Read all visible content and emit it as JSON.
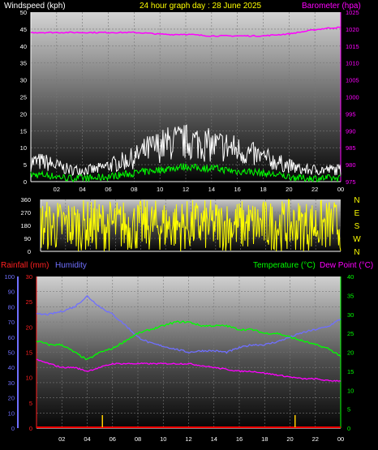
{
  "header": {
    "wind_label": "Windspeed (kph)",
    "title": "24 hour graph day : 28 June 2025",
    "baro_label": "Barometer (hpa)"
  },
  "colors": {
    "wind_gust": "#ffffff",
    "wind_avg": "#00ff00",
    "barometer": "#ff00ff",
    "direction": "#ffff00",
    "rainfall": "#ff0000",
    "humidity": "#6f6fff",
    "temperature": "#00ff00",
    "dewpoint": "#ff00ff",
    "grid": "#5a5a5a"
  },
  "x_ticks": [
    "02",
    "04",
    "06",
    "08",
    "10",
    "12",
    "14",
    "16",
    "18",
    "20",
    "22",
    "00"
  ],
  "chart_data": [
    {
      "type": "line",
      "title": "24 hour graph day : 28 June 2025",
      "ylabel": "Windspeed (kph)",
      "y2label": "Barometer (hpa)",
      "ylim": [
        0,
        50
      ],
      "y2lim": [
        975,
        1025
      ],
      "yticks": [
        0,
        5,
        10,
        15,
        20,
        25,
        30,
        35,
        40,
        45,
        50
      ],
      "y2ticks": [
        975,
        980,
        985,
        990,
        995,
        1000,
        1005,
        1010,
        1015,
        1020,
        1025
      ],
      "x_hours": [
        0,
        1,
        2,
        3,
        4,
        5,
        6,
        7,
        8,
        9,
        10,
        11,
        12,
        13,
        14,
        15,
        16,
        17,
        18,
        19,
        20,
        21,
        22,
        23,
        24
      ],
      "series": [
        {
          "name": "Windspeed (kph)",
          "axis": "left",
          "values": [
            5,
            5,
            4,
            3,
            3,
            3,
            4,
            5,
            6,
            8,
            9,
            10,
            10,
            10,
            9,
            9,
            8,
            7,
            6,
            5,
            4,
            3,
            3,
            3,
            3
          ]
        },
        {
          "name": "Barometer (hpa)",
          "axis": "right",
          "values": [
            1019,
            1019,
            1019,
            1019,
            1019,
            1019,
            1019,
            1019,
            1019,
            1018.8,
            1018.5,
            1018.4,
            1018.5,
            1018.2,
            1018,
            1018,
            1018,
            1018,
            1018,
            1018.3,
            1018.6,
            1019.2,
            1019.8,
            1020.3,
            1020.5
          ]
        },
        {
          "axis": "left",
          "values": [
            2,
            2,
            1.5,
            1,
            1,
            1,
            1.5,
            2,
            2.5,
            3,
            3.5,
            4,
            4.5,
            4,
            4,
            3.5,
            3,
            3,
            2.5,
            2,
            1.5,
            1,
            1,
            1,
            1
          ]
        }
      ]
    },
    {
      "type": "line",
      "ylim": [
        0,
        360
      ],
      "yticks": [
        0,
        90,
        180,
        270,
        360
      ],
      "y2ticks_text": [
        "N",
        "W",
        "S",
        "E",
        "N"
      ],
      "description_x": "wind direction rapidly varying across full range",
      "min": 0,
      "max": 360
    },
    {
      "type": "line",
      "y_left_outer_label": "Rainfall (mm)",
      "y_left_inner_label": "Humidity",
      "y_right_label_1": "Temperature (°C)",
      "y_right_label_2": "Dew Point (°C)",
      "humidity_ylim": [
        0,
        100
      ],
      "humidity_ticks": [
        0,
        10,
        20,
        30,
        40,
        50,
        60,
        70,
        80,
        90,
        100
      ],
      "rain_ylim": [
        0,
        30
      ],
      "rain_ticks": [
        0,
        5,
        10,
        15,
        20,
        25,
        30
      ],
      "temp_ylim": [
        0,
        40
      ],
      "temp_ticks": [
        0,
        5,
        10,
        15,
        20,
        25,
        30,
        35,
        40
      ],
      "x_hours": [
        0,
        1,
        2,
        3,
        4,
        5,
        6,
        7,
        8,
        9,
        10,
        11,
        12,
        13,
        14,
        15,
        16,
        17,
        18,
        19,
        20,
        21,
        22,
        23,
        24
      ],
      "series": [
        {
          "name": "Humidity",
          "axis": "humidity",
          "values": [
            75,
            75,
            77,
            80,
            87,
            80,
            75,
            68,
            60,
            56,
            54,
            52,
            50,
            51,
            51,
            50,
            53,
            55,
            55,
            57,
            60,
            63,
            65,
            67,
            72
          ]
        },
        {
          "name": "Temperature (°C)",
          "axis": "temp",
          "values": [
            23,
            22,
            22,
            20,
            18,
            20,
            21,
            23,
            25,
            26,
            27,
            28,
            28,
            27,
            27,
            27,
            26,
            26,
            25,
            25,
            24,
            23,
            22,
            21,
            19
          ]
        },
        {
          "name": "Dew Point (°C)",
          "axis": "temp",
          "values": [
            18,
            17,
            16,
            16,
            15,
            16,
            17,
            17,
            17,
            17,
            17,
            17,
            17,
            16.5,
            16,
            15.5,
            15,
            15,
            14.5,
            14,
            13.5,
            13,
            13,
            12.5,
            12.5
          ]
        },
        {
          "name": "Rainfall (mm)",
          "axis": "rain",
          "values": [
            0,
            0,
            0,
            0,
            0,
            0,
            0,
            0,
            0,
            0,
            0,
            0,
            0,
            0,
            0,
            0,
            0,
            0,
            0,
            0,
            0,
            0,
            0,
            0,
            0
          ]
        }
      ]
    }
  ]
}
